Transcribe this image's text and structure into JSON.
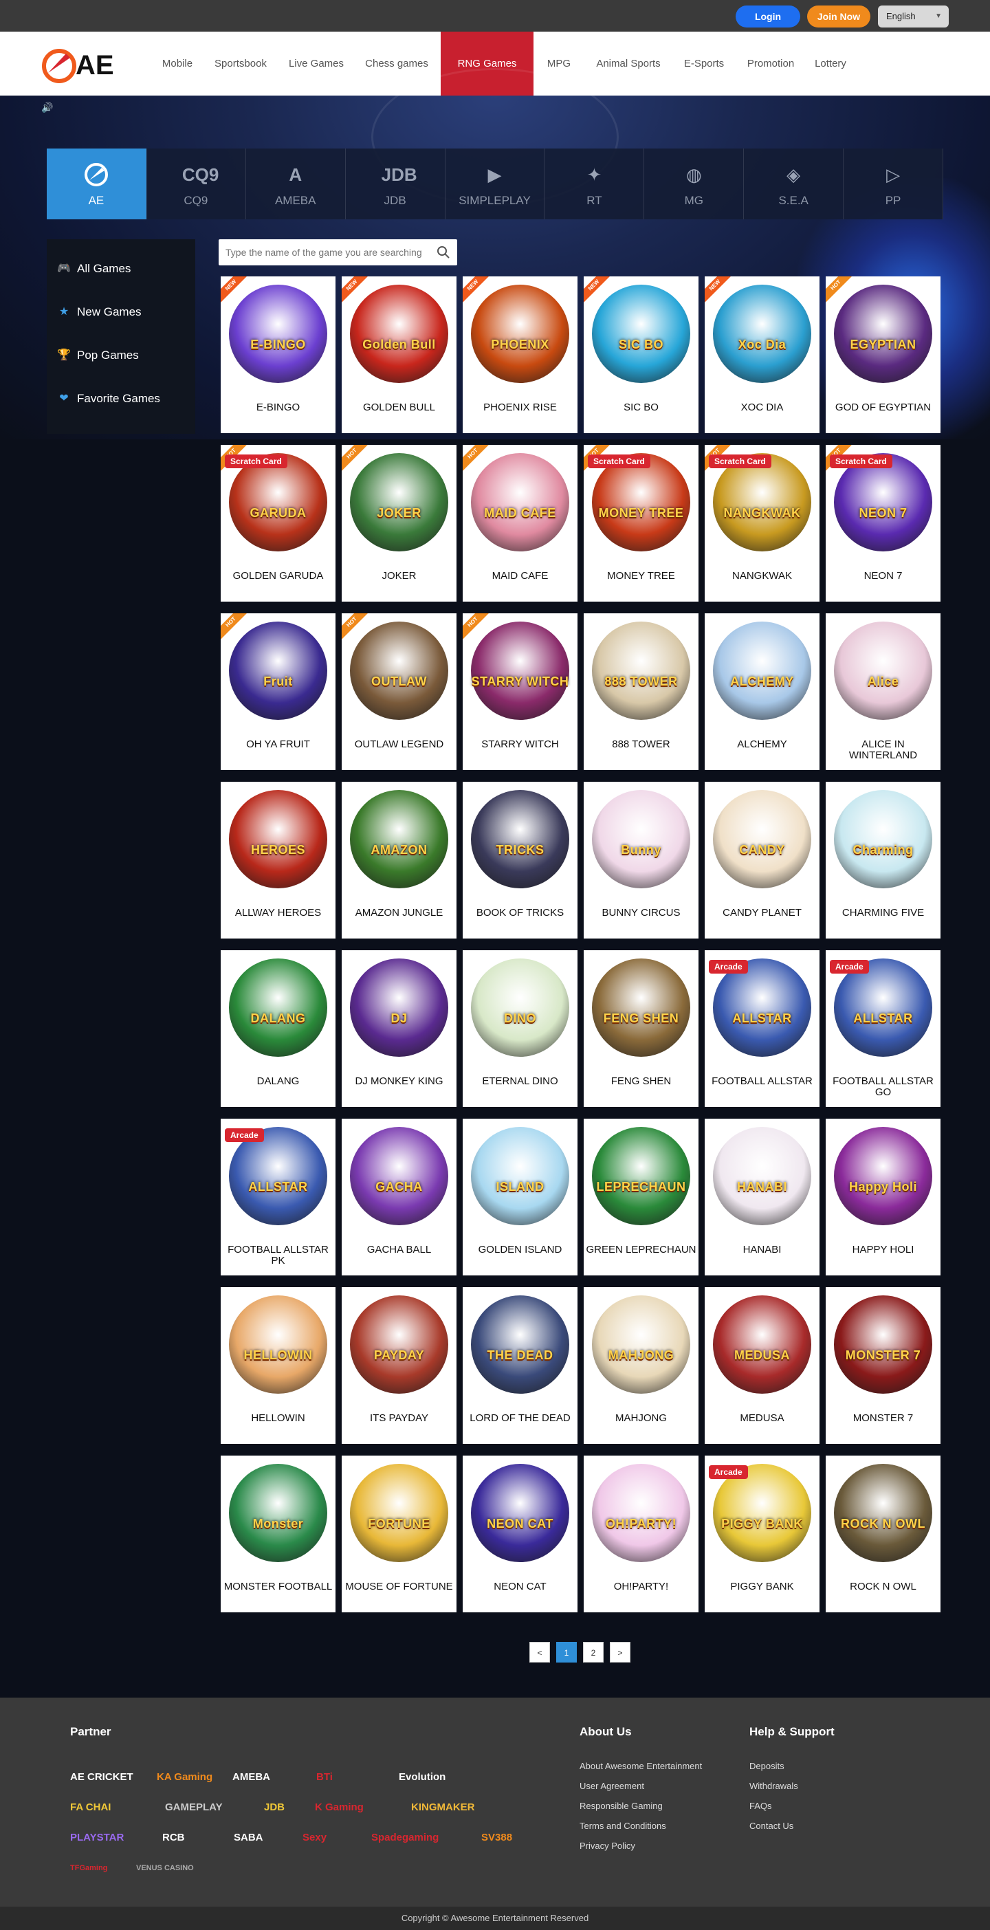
{
  "topbar": {
    "login": "Login",
    "join": "Join Now",
    "language": "English"
  },
  "nav": {
    "logo": "AE",
    "items": [
      "Mobile",
      "Sportsbook",
      "Live Games",
      "Chess games",
      "RNG Games",
      "MPG",
      "Animal Sports",
      "E-Sports",
      "Promotion",
      "Lottery"
    ],
    "active": "RNG Games"
  },
  "providers": [
    {
      "label": "AE",
      "icon": "AE-logo-icon"
    },
    {
      "label": "CQ9",
      "icon": "CQ9"
    },
    {
      "label": "AMEBA",
      "icon": "A"
    },
    {
      "label": "JDB",
      "icon": "JDB"
    },
    {
      "label": "SIMPLEPLAY",
      "icon": "▶"
    },
    {
      "label": "RT",
      "icon": "✦"
    },
    {
      "label": "MG",
      "icon": "◍"
    },
    {
      "label": "S.E.A",
      "icon": "◈"
    },
    {
      "label": "PP",
      "icon": "▷"
    }
  ],
  "sidebar": [
    {
      "label": "All Games",
      "icon": "gamepad-icon",
      "glyph": "🎮"
    },
    {
      "label": "New Games",
      "icon": "star-icon",
      "glyph": "★"
    },
    {
      "label": "Pop Games",
      "icon": "trophy-icon",
      "glyph": "🏆"
    },
    {
      "label": "Favorite Games",
      "icon": "heart-icon",
      "glyph": "❤"
    }
  ],
  "search": {
    "placeholder": "Type the name of the game you are searching"
  },
  "games": [
    {
      "name": "E-BINGO",
      "art": "E-BINGO",
      "tag": "NEW",
      "badge": "",
      "bg": "#6b3fd0"
    },
    {
      "name": "GOLDEN BULL",
      "art": "Golden Bull",
      "tag": "NEW",
      "badge": "",
      "bg": "#c8261c"
    },
    {
      "name": "PHOENIX RISE",
      "art": "PHOENIX",
      "tag": "NEW",
      "badge": "",
      "bg": "#c84a10"
    },
    {
      "name": "SIC BO",
      "art": "SIC BO",
      "tag": "NEW",
      "badge": "",
      "bg": "#27a6d8"
    },
    {
      "name": "XOC DIA",
      "art": "Xoc Dia",
      "tag": "NEW",
      "badge": "",
      "bg": "#2b9fd0"
    },
    {
      "name": "GOD OF EGYPTIAN",
      "art": "EGYPTIAN",
      "tag": "HOT",
      "badge": "",
      "bg": "#5a2a80"
    },
    {
      "name": "GOLDEN GARUDA",
      "art": "GARUDA",
      "tag": "HOT",
      "badge": "Scratch Card",
      "bg": "#b8321a"
    },
    {
      "name": "JOKER",
      "art": "JOKER",
      "tag": "HOT",
      "badge": "",
      "bg": "#3a7a3a"
    },
    {
      "name": "MAID CAFE",
      "art": "MAID CAFE",
      "tag": "HOT",
      "badge": "",
      "bg": "#e08aa0"
    },
    {
      "name": "MONEY TREE",
      "art": "MONEY TREE",
      "tag": "HOT",
      "badge": "Scratch Card",
      "bg": "#c83a18"
    },
    {
      "name": "NANGKWAK",
      "art": "NANGKWAK",
      "tag": "HOT",
      "badge": "Scratch Card",
      "bg": "#c89a20"
    },
    {
      "name": "NEON 7",
      "art": "NEON 7",
      "tag": "HOT",
      "badge": "Scratch Card",
      "bg": "#5a2ab0"
    },
    {
      "name": "OH YA FRUIT",
      "art": "Fruit",
      "tag": "HOT",
      "badge": "",
      "bg": "#3a2a90"
    },
    {
      "name": "OUTLAW LEGEND",
      "art": "OUTLAW",
      "tag": "HOT",
      "badge": "",
      "bg": "#7a5a3a"
    },
    {
      "name": "STARRY WITCH",
      "art": "STARRY WITCH",
      "tag": "HOT",
      "badge": "",
      "bg": "#8a2a6a"
    },
    {
      "name": "888 TOWER",
      "art": "888 TOWER",
      "tag": "",
      "badge": "",
      "bg": "#d8c8a8"
    },
    {
      "name": "ALCHEMY",
      "art": "ALCHEMY",
      "tag": "",
      "badge": "",
      "bg": "#a8c8e8"
    },
    {
      "name": "ALICE IN WINTERLAND",
      "art": "Alice",
      "tag": "",
      "badge": "",
      "bg": "#e8c8d8"
    },
    {
      "name": "ALLWAY HEROES",
      "art": "HEROES",
      "tag": "",
      "badge": "",
      "bg": "#b8281a"
    },
    {
      "name": "AMAZON JUNGLE",
      "art": "AMAZON",
      "tag": "",
      "badge": "",
      "bg": "#3a7a2a"
    },
    {
      "name": "BOOK OF TRICKS",
      "art": "TRICKS",
      "tag": "",
      "badge": "",
      "bg": "#3a3a5a"
    },
    {
      "name": "BUNNY CIRCUS",
      "art": "Bunny",
      "tag": "",
      "badge": "",
      "bg": "#f0d8e8"
    },
    {
      "name": "CANDY PLANET",
      "art": "CANDY",
      "tag": "",
      "badge": "",
      "bg": "#f0e0c8"
    },
    {
      "name": "CHARMING FIVE",
      "art": "Charming",
      "tag": "",
      "badge": "",
      "bg": "#c8e8f0"
    },
    {
      "name": "DALANG",
      "art": "DALANG",
      "tag": "",
      "badge": "",
      "bg": "#2a8a3a"
    },
    {
      "name": "DJ MONKEY KING",
      "art": "DJ",
      "tag": "",
      "badge": "",
      "bg": "#5a2a90"
    },
    {
      "name": "ETERNAL DINO",
      "art": "DINO",
      "tag": "",
      "badge": "",
      "bg": "#d8e8c8"
    },
    {
      "name": "FENG SHEN",
      "art": "FENG SHEN",
      "tag": "",
      "badge": "",
      "bg": "#8a6a3a"
    },
    {
      "name": "FOOTBALL ALLSTAR",
      "art": "ALLSTAR",
      "tag": "",
      "badge": "Arcade",
      "bg": "#3a5ab0"
    },
    {
      "name": "FOOTBALL ALLSTAR GO",
      "art": "ALLSTAR",
      "tag": "",
      "badge": "Arcade",
      "bg": "#3a5ab0"
    },
    {
      "name": "FOOTBALL ALLSTAR PK",
      "art": "ALLSTAR",
      "tag": "",
      "badge": "Arcade",
      "bg": "#3a5ab0"
    },
    {
      "name": "GACHA BALL",
      "art": "GACHA",
      "tag": "",
      "badge": "",
      "bg": "#7a3ab0"
    },
    {
      "name": "GOLDEN ISLAND",
      "art": "ISLAND",
      "tag": "",
      "badge": "",
      "bg": "#a8d8f0"
    },
    {
      "name": "GREEN LEPRECHAUN",
      "art": "LEPRECHAUN",
      "tag": "",
      "badge": "",
      "bg": "#2a8a3a"
    },
    {
      "name": "HANABI",
      "art": "HANABI",
      "tag": "",
      "badge": "",
      "bg": "#f0e8f0"
    },
    {
      "name": "HAPPY HOLI",
      "art": "Happy Holi",
      "tag": "",
      "badge": "",
      "bg": "#8a2a9a"
    },
    {
      "name": "HELLOWIN",
      "art": "HELLOWIN",
      "tag": "",
      "badge": "",
      "bg": "#e8a868"
    },
    {
      "name": "ITS PAYDAY",
      "art": "PAYDAY",
      "tag": "",
      "badge": "",
      "bg": "#a83a2a"
    },
    {
      "name": "LORD OF THE DEAD",
      "art": "THE DEAD",
      "tag": "",
      "badge": "",
      "bg": "#3a4a7a"
    },
    {
      "name": "MAHJONG",
      "art": "MAHJONG",
      "tag": "",
      "badge": "",
      "bg": "#e8d8b8"
    },
    {
      "name": "MEDUSA",
      "art": "MEDUSA",
      "tag": "",
      "badge": "",
      "bg": "#a82a2a"
    },
    {
      "name": "MONSTER 7",
      "art": "MONSTER 7",
      "tag": "",
      "badge": "",
      "bg": "#8a1a1a"
    },
    {
      "name": "MONSTER FOOTBALL",
      "art": "Monster",
      "tag": "",
      "badge": "",
      "bg": "#2a8a4a"
    },
    {
      "name": "MOUSE OF FORTUNE",
      "art": "FORTUNE",
      "tag": "",
      "badge": "",
      "bg": "#e8b838"
    },
    {
      "name": "NEON CAT",
      "art": "NEON CAT",
      "tag": "",
      "badge": "",
      "bg": "#3a2a9a"
    },
    {
      "name": "OH!PARTY!",
      "art": "OH!PARTY!",
      "tag": "",
      "badge": "",
      "bg": "#f0c8e8"
    },
    {
      "name": "PIGGY BANK",
      "art": "PIGGY BANK",
      "tag": "",
      "badge": "Arcade",
      "bg": "#e8c838"
    },
    {
      "name": "ROCK N OWL",
      "art": "ROCK N OWL",
      "tag": "",
      "badge": "",
      "bg": "#6a5a3a"
    }
  ],
  "pagination": {
    "prev": "<",
    "pages": [
      "1",
      "2"
    ],
    "active": "1",
    "next": ">"
  },
  "footer": {
    "partner_heading": "Partner",
    "partners": [
      {
        "label": "AE CRICKET",
        "color": "#ffffff"
      },
      {
        "label": "KA Gaming",
        "color": "#f08a1c"
      },
      {
        "label": "AMEBA",
        "color": "#ffffff"
      },
      {
        "label": "BTi",
        "color": "#d8262f"
      },
      {
        "label": "Evolution",
        "color": "#ffffff"
      },
      {
        "label": "FA CHAI",
        "color": "#f0c838"
      },
      {
        "label": "GAMEPLAY",
        "color": "#cccccc"
      },
      {
        "label": "JDB",
        "color": "#f0c838"
      },
      {
        "label": "K Gaming",
        "color": "#d8262f"
      },
      {
        "label": "KINGMAKER",
        "color": "#f0b838"
      },
      {
        "label": "PLAYSTAR",
        "color": "#9a6af0"
      },
      {
        "label": "RCB",
        "color": "#ffffff"
      },
      {
        "label": "SABA",
        "color": "#ffffff"
      },
      {
        "label": "Sexy",
        "color": "#d8262f"
      },
      {
        "label": "Spadegaming",
        "color": "#d8262f"
      },
      {
        "label": "SV388",
        "color": "#f08a1c"
      },
      {
        "label": "TFGaming",
        "color": "#d8262f"
      },
      {
        "label": "VENUS CASINO",
        "color": "#aaaaaa"
      }
    ],
    "about_heading": "About Us",
    "about_links": [
      "About Awesome Entertainment",
      "User Agreement",
      "Responsible Gaming",
      "Terms and Conditions",
      "Privacy Policy"
    ],
    "help_heading": "Help & Support",
    "help_links": [
      "Deposits",
      "Withdrawals",
      "FAQs",
      "Contact Us"
    ],
    "copyright": "Copyright © Awesome Entertainment Reserved"
  }
}
